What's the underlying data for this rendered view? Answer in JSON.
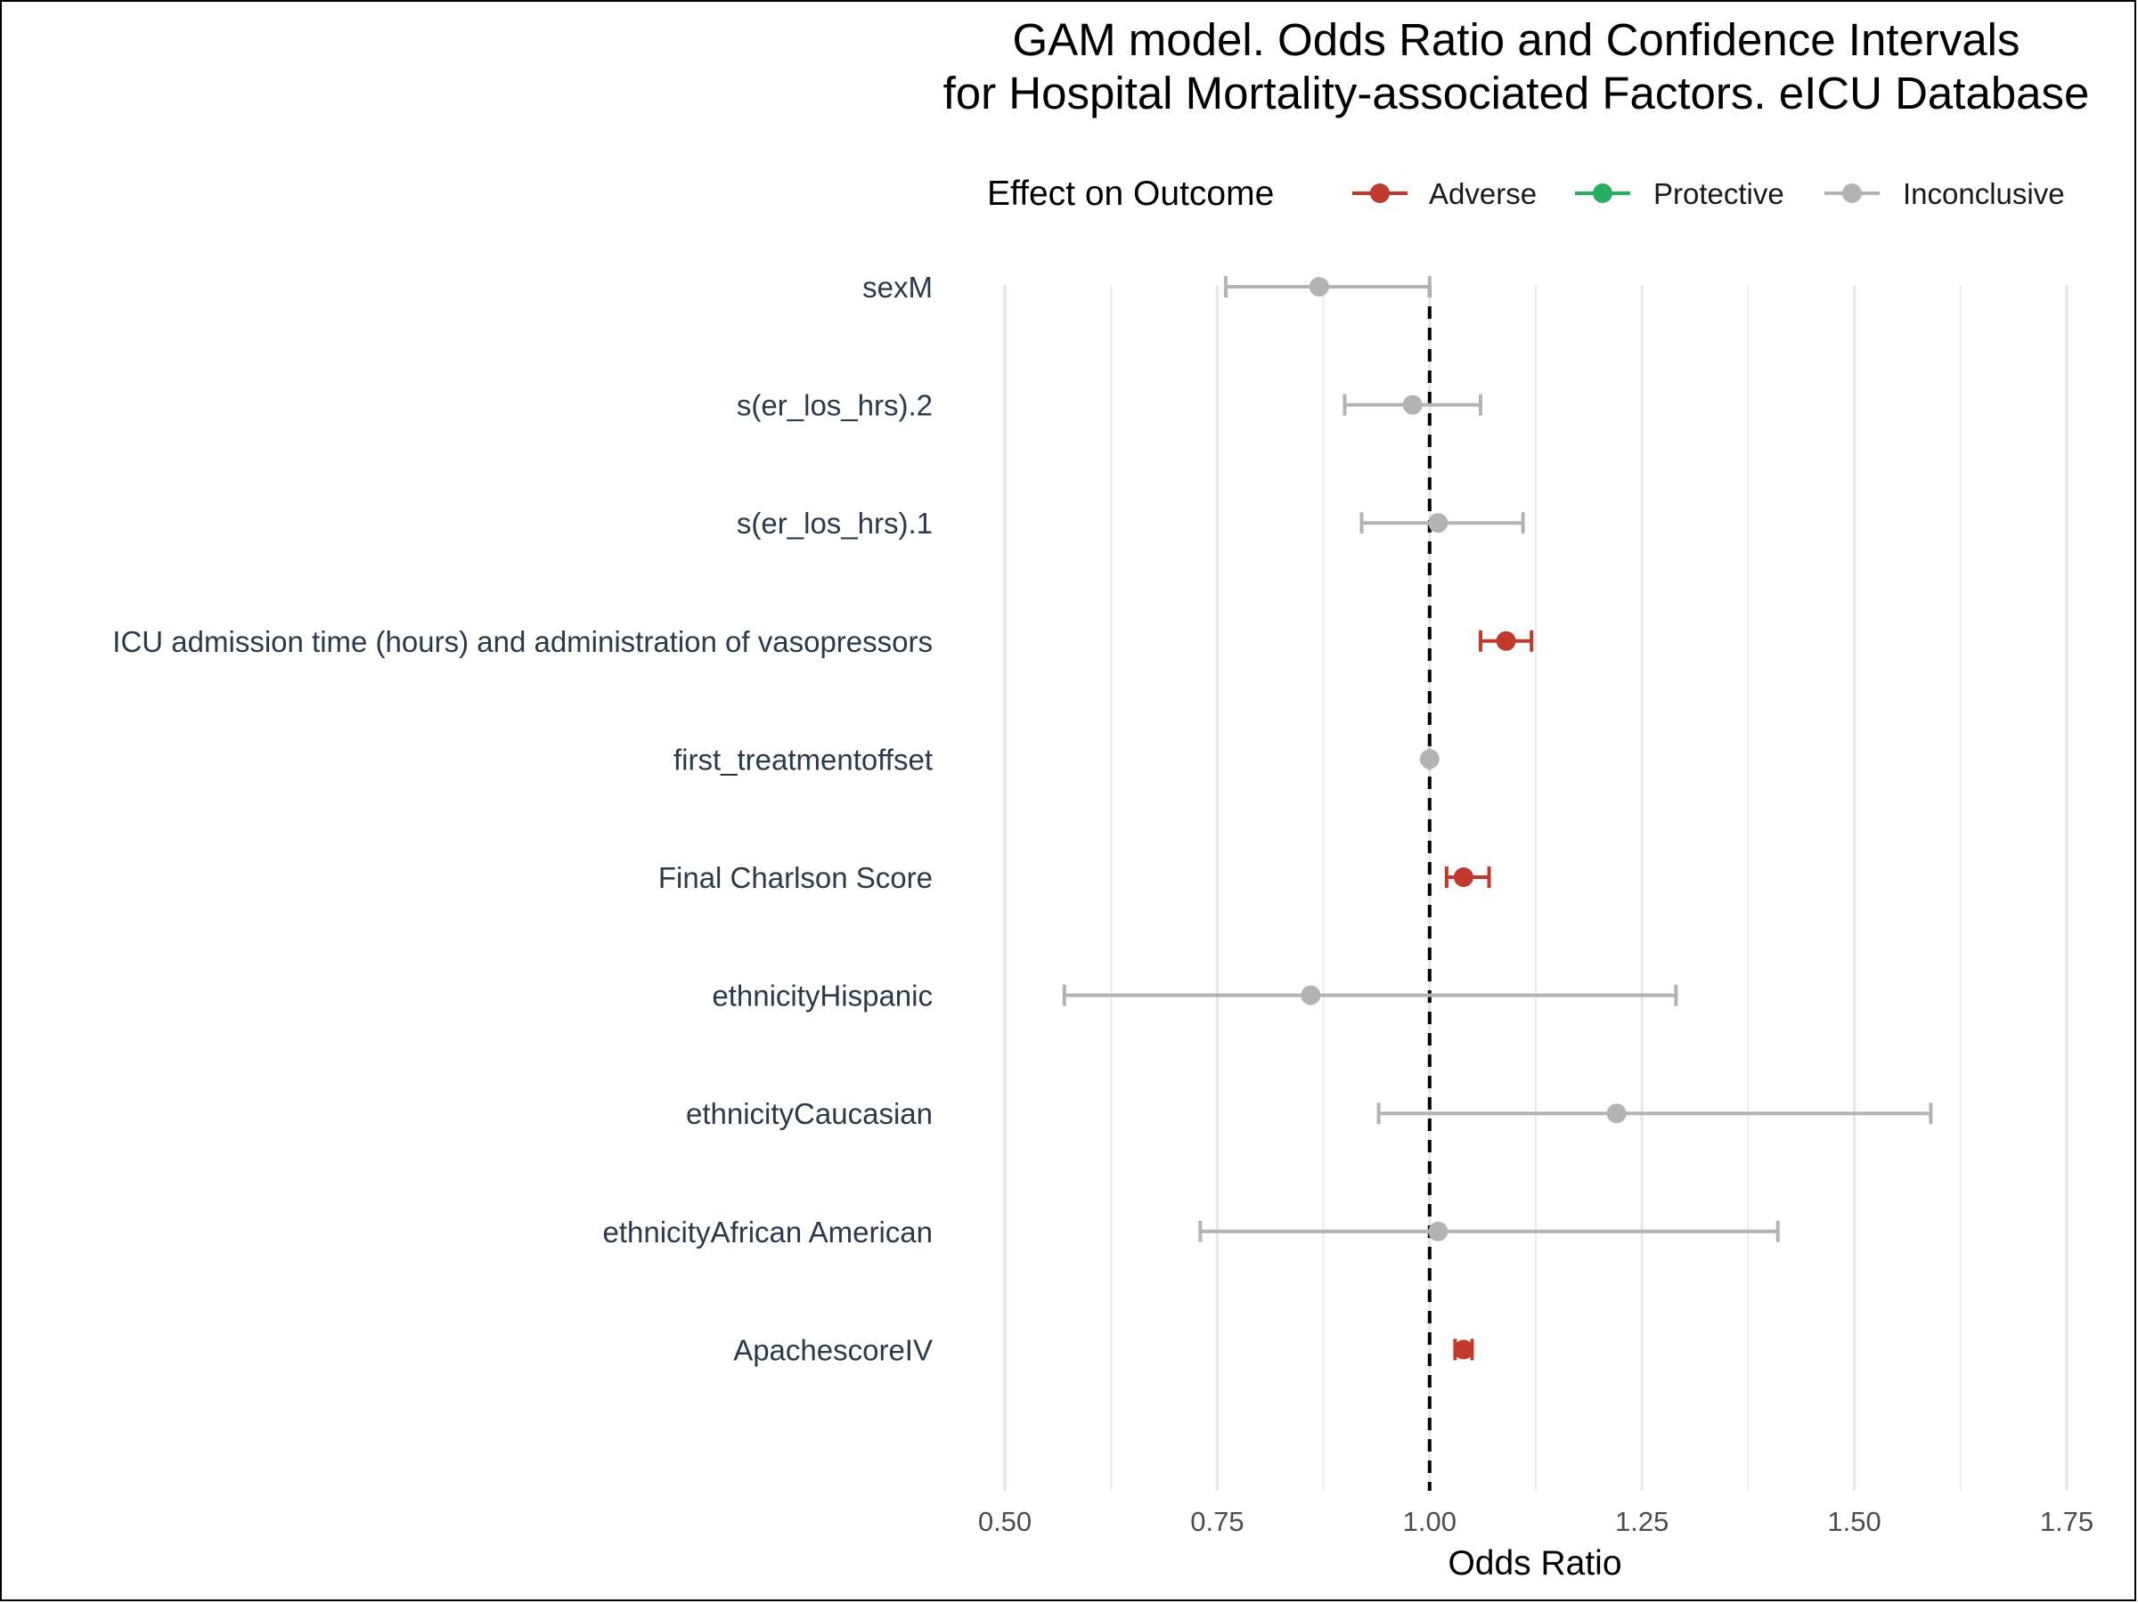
{
  "chart_data": {
    "type": "forest",
    "title": [
      "GAM model. Odds Ratio and Confidence Intervals",
      "for Hospital Mortality-associated Factors. eICU Database"
    ],
    "xlabel": "Odds Ratio",
    "ylabel": "",
    "xlim": [
      0.5,
      1.75
    ],
    "xticks": [
      0.5,
      0.75,
      1.0,
      1.25,
      1.5,
      1.75
    ],
    "xtick_labels": [
      "0.50",
      "0.75",
      "1.00",
      "1.25",
      "1.50",
      "1.75"
    ],
    "reference_line": 1.0,
    "grid": true,
    "legend": {
      "title": "Effect on Outcome",
      "position": "top",
      "entries": [
        {
          "label": "Adverse",
          "color": "#c0392b"
        },
        {
          "label": "Protective",
          "color": "#27ae60"
        },
        {
          "label": "Inconclusive",
          "color": "#b3b3b3"
        }
      ]
    },
    "rows": [
      {
        "label": "sexM",
        "or": 0.87,
        "lower": 0.76,
        "upper": 1.0,
        "effect": "Inconclusive"
      },
      {
        "label": "s(er_los_hrs).2",
        "or": 0.98,
        "lower": 0.9,
        "upper": 1.06,
        "effect": "Inconclusive"
      },
      {
        "label": "s(er_los_hrs).1",
        "or": 1.01,
        "lower": 0.92,
        "upper": 1.11,
        "effect": "Inconclusive"
      },
      {
        "label": "ICU admission time (hours) and administration of vasopressors",
        "or": 1.09,
        "lower": 1.06,
        "upper": 1.12,
        "effect": "Adverse"
      },
      {
        "label": "first_treatmentoffset",
        "or": 1.0,
        "lower": 1.0,
        "upper": 1.0,
        "effect": "Inconclusive"
      },
      {
        "label": "Final Charlson Score",
        "or": 1.04,
        "lower": 1.02,
        "upper": 1.07,
        "effect": "Adverse"
      },
      {
        "label": "ethnicityHispanic",
        "or": 0.86,
        "lower": 0.57,
        "upper": 1.29,
        "effect": "Inconclusive"
      },
      {
        "label": "ethnicityCaucasian",
        "or": 1.22,
        "lower": 0.94,
        "upper": 1.59,
        "effect": "Inconclusive"
      },
      {
        "label": "ethnicityAfrican American",
        "or": 1.01,
        "lower": 0.73,
        "upper": 1.41,
        "effect": "Inconclusive"
      },
      {
        "label": "ApachescoreIV",
        "or": 1.04,
        "lower": 1.03,
        "upper": 1.05,
        "effect": "Adverse"
      }
    ]
  }
}
